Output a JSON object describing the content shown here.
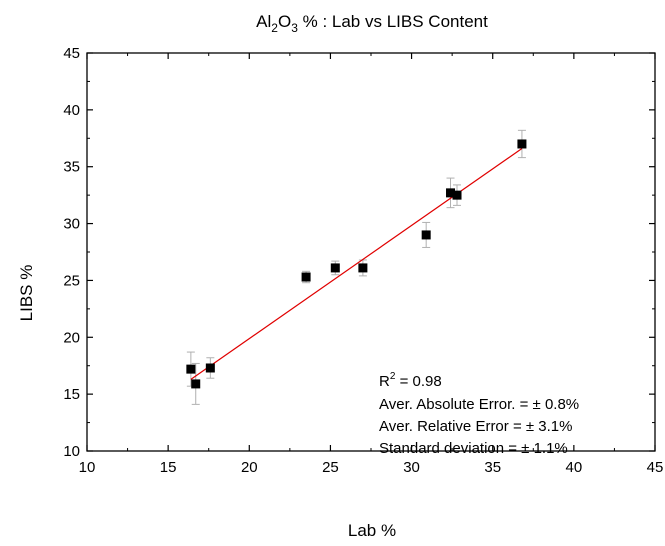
{
  "chart_data": {
    "type": "scatter",
    "title": {
      "prefix": "Al",
      "sub1": "2",
      "middle": "O",
      "sub2": "3",
      "suffix": " % : Lab vs LIBS Content"
    },
    "xlabel": "Lab %",
    "ylabel": "LIBS %",
    "xlim": [
      10,
      45
    ],
    "ylim": [
      10,
      45
    ],
    "xticks": [
      10,
      15,
      20,
      25,
      30,
      35,
      40,
      45
    ],
    "yticks": [
      10,
      15,
      20,
      25,
      30,
      35,
      40,
      45
    ],
    "points": [
      {
        "x": 16.4,
        "y": 17.2,
        "err": 1.5
      },
      {
        "x": 16.7,
        "y": 15.9,
        "err": 1.8
      },
      {
        "x": 17.6,
        "y": 17.3,
        "err": 0.9
      },
      {
        "x": 23.5,
        "y": 25.3,
        "err": 0.5
      },
      {
        "x": 25.3,
        "y": 26.1,
        "err": 0.6
      },
      {
        "x": 27.0,
        "y": 26.1,
        "err": 0.7
      },
      {
        "x": 30.9,
        "y": 29.0,
        "err": 1.1
      },
      {
        "x": 32.4,
        "y": 32.7,
        "err": 1.3
      },
      {
        "x": 32.8,
        "y": 32.5,
        "err": 0.9
      },
      {
        "x": 36.8,
        "y": 37.0,
        "err": 1.2
      }
    ],
    "fit_line": {
      "x": [
        16.4,
        36.8
      ],
      "y": [
        16.3,
        36.6
      ],
      "color": "#e00000"
    },
    "annotations": {
      "r2_prefix": "R",
      "r2_sup": "2",
      "r2_suffix": " = 0.98",
      "lines": [
        "Aver. Absolute Error. = ± 0.8%",
        "Aver. Relative Error = ± 3.1%",
        "Standard deviation = ± 1.1%"
      ]
    },
    "marker_color": "#000000",
    "errorbar_color": "#b0b0b0",
    "grid": false
  }
}
